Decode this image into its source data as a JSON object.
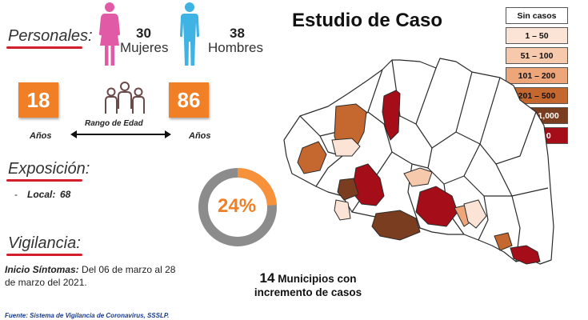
{
  "title": "Estudio de Caso",
  "personales": {
    "heading": "Personales:",
    "women_count": "30",
    "women_label": "Mujeres",
    "men_count": "38",
    "men_label": "Hombres"
  },
  "age_range": {
    "min": "18",
    "max": "86",
    "unit": "Años",
    "label": "Rango de Edad"
  },
  "exposicion": {
    "heading": "Exposición:",
    "bullet": "-",
    "local_label": "Local:",
    "local_value": "68"
  },
  "donut": {
    "percent_text": "24%",
    "value": 24,
    "color_fill": "#f7923a",
    "color_track": "#8c8c8c"
  },
  "vigilancia": {
    "heading": "Vigilancia:",
    "inicio_label": "Inicio Síntomas:",
    "inicio_text_1": "Del 06 de marzo al 28",
    "inicio_text_2": "de marzo del 2021."
  },
  "municipios": {
    "count": "14",
    "line1_rest": "Municipios con",
    "line2": "incremento de casos"
  },
  "legend": [
    {
      "label": "Sin casos",
      "color": "#ffffff",
      "text_color": "#111111"
    },
    {
      "label": "1 – 50",
      "color": "#fbe4d6",
      "text_color": "#111111"
    },
    {
      "label": "51 – 100",
      "color": "#f6c9ac",
      "text_color": "#111111"
    },
    {
      "label": "101 – 200",
      "color": "#eda57a",
      "text_color": "#111111"
    },
    {
      "label": "201 – 500",
      "color": "#c4682f",
      "text_color": "#111111"
    },
    {
      "label": "501 – 1,000",
      "color": "#7a3d1f",
      "text_color": "#ffffff"
    },
    {
      "label": "+ 1,000",
      "color": "#a50d18",
      "text_color": "#ffffff"
    }
  ],
  "footer": "Fuente: Sistema de Vigilancia de Coronavirus, SSSLP.",
  "icons": {
    "woman": "woman-icon",
    "man": "man-icon",
    "group": "people-group-icon",
    "woman_color": "#e05aa6",
    "man_color": "#3fb3e3",
    "accent_red": "#d21f2b",
    "accent_orange": "#f07f25"
  }
}
